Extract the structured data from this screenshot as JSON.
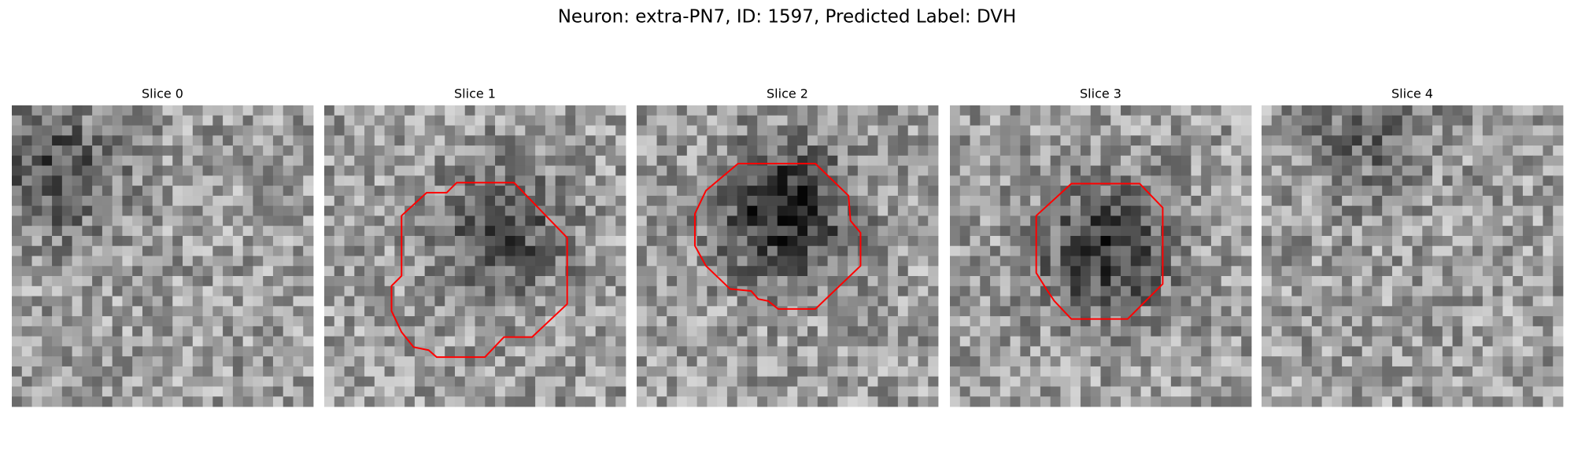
{
  "title": "Neuron: extra-PN7, ID: 1597, Predicted Label: DVH",
  "panels": [
    {
      "title": "Slice 0"
    },
    {
      "title": "Slice 1"
    },
    {
      "title": "Slice 2"
    },
    {
      "title": "Slice 3"
    },
    {
      "title": "Slice 4"
    }
  ]
}
